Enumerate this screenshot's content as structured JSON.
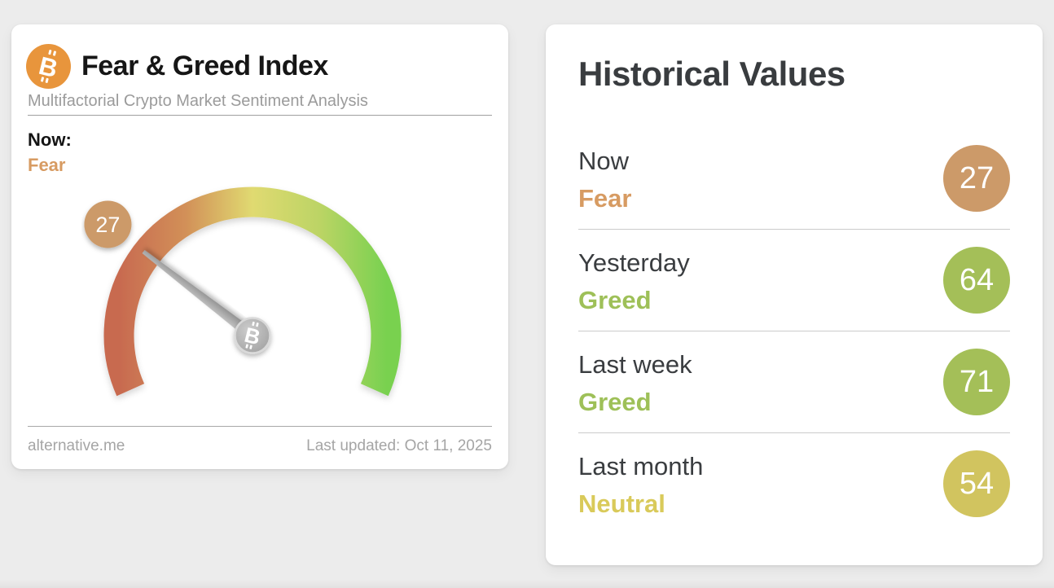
{
  "page": {
    "background": "#ececec"
  },
  "gauge_card": {
    "title": "Fear & Greed Index",
    "subtitle": "Multifactorial Crypto Market Sentiment Analysis",
    "now_label": "Now:",
    "now_classification": "Fear",
    "now_classification_color": "#d79b62",
    "source": "alternative.me",
    "last_updated": "Last updated: Oct 11, 2025",
    "bitcoin_orange": "#e8953c",
    "gauge": {
      "value": 27,
      "min": 0,
      "max": 100,
      "badge_color": "#cc9a69",
      "needle_color": "#9e9e9e",
      "gradient": [
        "#c86a50",
        "#d29058",
        "#e0da71",
        "#bcd465",
        "#79d150"
      ]
    }
  },
  "history_card": {
    "title": "Historical Values",
    "rows": [
      {
        "label": "Now",
        "classification": "Fear",
        "value": "27",
        "text_color": "#d79b62",
        "circle_color": "#cc9a69"
      },
      {
        "label": "Yesterday",
        "classification": "Greed",
        "value": "64",
        "text_color": "#9ec058",
        "circle_color": "#a4bf58"
      },
      {
        "label": "Last week",
        "classification": "Greed",
        "value": "71",
        "text_color": "#9ec058",
        "circle_color": "#a4bf58"
      },
      {
        "label": "Last month",
        "classification": "Neutral",
        "value": "54",
        "text_color": "#d9ca5a",
        "circle_color": "#d1c45f"
      }
    ]
  },
  "chart_data": {
    "type": "gauge",
    "title": "Fear & Greed Index",
    "value": 27,
    "range": [
      0,
      100
    ],
    "classification": "Fear",
    "color_scale": "red (0, Extreme Fear) through yellow (50, Neutral) to green (100, Extreme Greed)",
    "historical": [
      {
        "period": "Now",
        "value": 27,
        "classification": "Fear"
      },
      {
        "period": "Yesterday",
        "value": 64,
        "classification": "Greed"
      },
      {
        "period": "Last week",
        "value": 71,
        "classification": "Greed"
      },
      {
        "period": "Last month",
        "value": 54,
        "classification": "Neutral"
      }
    ]
  }
}
